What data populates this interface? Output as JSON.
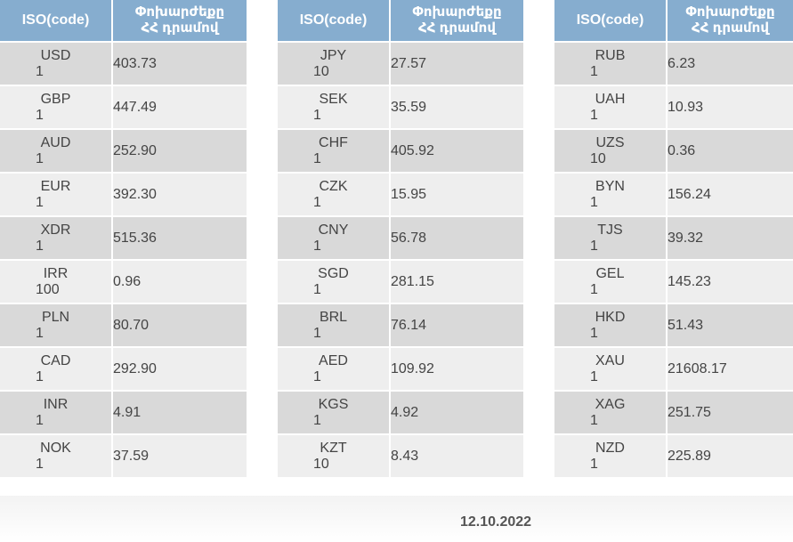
{
  "header": {
    "iso_label": "ISO(code)",
    "value_label_line1": "Փոխարժեքը",
    "value_label_line2": "ՀՀ դրամով"
  },
  "tables": [
    {
      "rows": [
        {
          "code": "USD",
          "amount": "1",
          "rate": "403.73"
        },
        {
          "code": "GBP",
          "amount": "1",
          "rate": "447.49"
        },
        {
          "code": "AUD",
          "amount": "1",
          "rate": "252.90"
        },
        {
          "code": "EUR",
          "amount": "1",
          "rate": "392.30"
        },
        {
          "code": "XDR",
          "amount": "1",
          "rate": "515.36"
        },
        {
          "code": "IRR",
          "amount": "100",
          "rate": "0.96"
        },
        {
          "code": "PLN",
          "amount": "1",
          "rate": "80.70"
        },
        {
          "code": "CAD",
          "amount": "1",
          "rate": "292.90"
        },
        {
          "code": "INR",
          "amount": "1",
          "rate": "4.91"
        },
        {
          "code": "NOK",
          "amount": "1",
          "rate": "37.59"
        }
      ]
    },
    {
      "rows": [
        {
          "code": "JPY",
          "amount": "10",
          "rate": "27.57"
        },
        {
          "code": "SEK",
          "amount": "1",
          "rate": "35.59"
        },
        {
          "code": "CHF",
          "amount": "1",
          "rate": "405.92"
        },
        {
          "code": "CZK",
          "amount": "1",
          "rate": "15.95"
        },
        {
          "code": "CNY",
          "amount": "1",
          "rate": "56.78"
        },
        {
          "code": "SGD",
          "amount": "1",
          "rate": "281.15"
        },
        {
          "code": "BRL",
          "amount": "1",
          "rate": "76.14"
        },
        {
          "code": "AED",
          "amount": "1",
          "rate": "109.92"
        },
        {
          "code": "KGS",
          "amount": "1",
          "rate": "4.92"
        },
        {
          "code": "KZT",
          "amount": "10",
          "rate": "8.43"
        }
      ]
    },
    {
      "rows": [
        {
          "code": "RUB",
          "amount": "1",
          "rate": "6.23"
        },
        {
          "code": "UAH",
          "amount": "1",
          "rate": "10.93"
        },
        {
          "code": "UZS",
          "amount": "10",
          "rate": "0.36"
        },
        {
          "code": "BYN",
          "amount": "1",
          "rate": "156.24"
        },
        {
          "code": "TJS",
          "amount": "1",
          "rate": "39.32"
        },
        {
          "code": "GEL",
          "amount": "1",
          "rate": "145.23"
        },
        {
          "code": "HKD",
          "amount": "1",
          "rate": "51.43"
        },
        {
          "code": "XAU",
          "amount": "1",
          "rate": "21608.17"
        },
        {
          "code": "XAG",
          "amount": "1",
          "rate": "251.75"
        },
        {
          "code": "NZD",
          "amount": "1",
          "rate": "225.89"
        }
      ]
    }
  ],
  "footer": {
    "date": "12.10.2022"
  },
  "colors": {
    "header_bg": "#86adcf",
    "row_dark": "#d9d9d9",
    "row_light": "#eeeeee"
  }
}
